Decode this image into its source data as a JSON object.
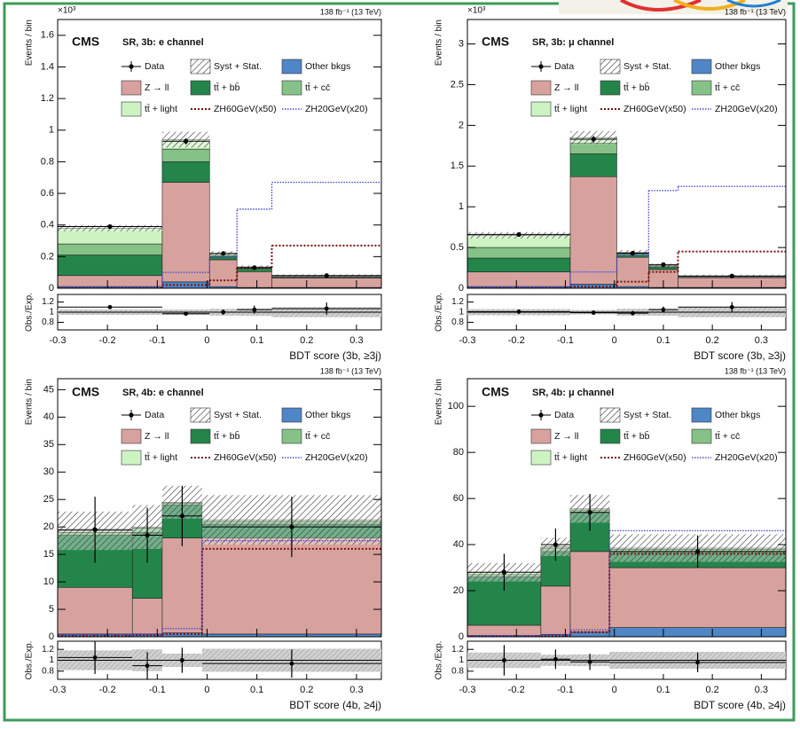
{
  "chart_data": [
    {
      "type": "stacked_histogram",
      "experiment": "CMS",
      "label": "SR, 3b: e channel",
      "lumi": "138 fb⁻¹ (13 TeV)",
      "y_multiplier": "×10³",
      "ylabel": "Events / bin",
      "xlabel": "BDT score (3b, ≥3j)",
      "bins": [
        -0.3,
        -0.09,
        0.005,
        0.06,
        0.13,
        0.35
      ],
      "xlim": [
        -0.3,
        0.35
      ],
      "xticks": [
        -0.3,
        -0.2,
        -0.1,
        0,
        0.1,
        0.2,
        0.3
      ],
      "ylim": [
        0,
        1.7
      ],
      "yticks": [
        0,
        0.2,
        0.4,
        0.6,
        0.8,
        1,
        1.2,
        1.4,
        1.6
      ],
      "series": [
        {
          "name": "Other bkgs",
          "color": "#4f86c6",
          "values": [
            0.01,
            0.04,
            0.01,
            0.005,
            0.005
          ]
        },
        {
          "name": "Z → ll",
          "color": "#d7a29e",
          "values": [
            0.07,
            0.63,
            0.17,
            0.1,
            0.06
          ]
        },
        {
          "name": "tt̄ + bb̄",
          "color": "#23854a",
          "values": [
            0.13,
            0.13,
            0.02,
            0.02,
            0.005
          ]
        },
        {
          "name": "tt̄ + cc̄",
          "color": "#86c287",
          "values": [
            0.07,
            0.08,
            0.01,
            0.005,
            0.005
          ]
        },
        {
          "name": "tt̄ + light",
          "color": "#cdf3c3",
          "values": [
            0.1,
            0.06,
            0.01,
            0.005,
            0.005
          ]
        }
      ],
      "data": {
        "name": "Data",
        "values": [
          0.39,
          0.93,
          0.22,
          0.13,
          0.08
        ],
        "errors": [
          0.01,
          0.02,
          0.01,
          0.01,
          0.01
        ]
      },
      "uncertainty": {
        "name": "Syst + Stat.",
        "values": [
          0.02,
          0.05,
          0.015,
          0.01,
          0.008
        ]
      },
      "signals": [
        {
          "name": "ZH60GeV(x50)",
          "color": "#7a1010",
          "values": [
            0,
            0.02,
            0.05,
            0.13,
            0.27
          ]
        },
        {
          "name": "ZH20GeV(x20)",
          "color": "#4a4ad0",
          "values": [
            0.01,
            0.1,
            0.2,
            0.5,
            0.67
          ]
        }
      ],
      "ratio": {
        "ylabel": "Obs./Exp.",
        "ylim": [
          0.65,
          1.35
        ],
        "yticks": [
          0.8,
          1,
          1.2
        ],
        "values": [
          1.1,
          0.97,
          1.0,
          1.05,
          1.07
        ],
        "errors": [
          0.03,
          0.02,
          0.05,
          0.08,
          0.12
        ]
      }
    },
    {
      "type": "stacked_histogram",
      "experiment": "CMS",
      "label": "SR, 3b: μ channel",
      "lumi": "138 fb⁻¹ (13 TeV)",
      "y_multiplier": "×10³",
      "ylabel": "Events / bin",
      "xlabel": "BDT score (3b, ≥3j)",
      "bins": [
        -0.3,
        -0.09,
        0.005,
        0.07,
        0.13,
        0.35
      ],
      "xlim": [
        -0.3,
        0.35
      ],
      "xticks": [
        -0.3,
        -0.2,
        -0.1,
        0,
        0.1,
        0.2,
        0.3
      ],
      "ylim": [
        0,
        3.3
      ],
      "yticks": [
        0,
        0.5,
        1,
        1.5,
        2,
        2.5,
        3
      ],
      "series": [
        {
          "name": "Other bkgs",
          "color": "#4f86c6",
          "values": [
            0.02,
            0.05,
            0.02,
            0.01,
            0.01
          ]
        },
        {
          "name": "Z → ll",
          "color": "#d7a29e",
          "values": [
            0.18,
            1.32,
            0.36,
            0.22,
            0.12
          ]
        },
        {
          "name": "tt̄ + bb̄",
          "color": "#23854a",
          "values": [
            0.17,
            0.28,
            0.04,
            0.03,
            0.01
          ]
        },
        {
          "name": "tt̄ + cc̄",
          "color": "#86c287",
          "values": [
            0.13,
            0.13,
            0.01,
            0.01,
            0.005
          ]
        },
        {
          "name": "tt̄ + light",
          "color": "#cdf3c3",
          "values": [
            0.15,
            0.07,
            0.01,
            0.01,
            0.005
          ]
        }
      ],
      "data": {
        "name": "Data",
        "values": [
          0.66,
          1.83,
          0.43,
          0.29,
          0.15
        ],
        "errors": [
          0.02,
          0.04,
          0.02,
          0.02,
          0.01
        ]
      },
      "uncertainty": {
        "name": "Syst + Stat.",
        "values": [
          0.04,
          0.08,
          0.03,
          0.02,
          0.015
        ]
      },
      "signals": [
        {
          "name": "ZH60GeV(x50)",
          "color": "#7a1010",
          "values": [
            0,
            0.02,
            0.08,
            0.2,
            0.45
          ]
        },
        {
          "name": "ZH20GeV(x20)",
          "color": "#4a4ad0",
          "values": [
            0.02,
            0.2,
            0.4,
            1.2,
            1.25
          ]
        }
      ],
      "ratio": {
        "ylabel": "Obs./Exp.",
        "ylim": [
          0.65,
          1.35
        ],
        "yticks": [
          0.8,
          1,
          1.2
        ],
        "values": [
          1.01,
          0.99,
          0.98,
          1.05,
          1.1
        ],
        "errors": [
          0.02,
          0.02,
          0.04,
          0.06,
          0.1
        ]
      }
    },
    {
      "type": "stacked_histogram",
      "experiment": "CMS",
      "label": "SR, 4b: e channel",
      "lumi": "138 fb⁻¹ (13 TeV)",
      "ylabel": "Events / bin",
      "xlabel": "BDT score (4b, ≥4j)",
      "bins": [
        -0.3,
        -0.15,
        -0.09,
        -0.01,
        0.35
      ],
      "xlim": [
        -0.3,
        0.35
      ],
      "xticks": [
        -0.3,
        -0.2,
        -0.1,
        0,
        0.1,
        0.2,
        0.3
      ],
      "ylim": [
        0,
        47
      ],
      "yticks": [
        0,
        5,
        10,
        15,
        20,
        25,
        30,
        35,
        40,
        45
      ],
      "series": [
        {
          "name": "Other bkgs",
          "color": "#4f86c6",
          "values": [
            0.5,
            0.5,
            0.7,
            0.5
          ]
        },
        {
          "name": "Z → ll",
          "color": "#d7a29e",
          "values": [
            8.5,
            6.5,
            17.3,
            17.5
          ]
        },
        {
          "name": "tt̄ + bb̄",
          "color": "#23854a",
          "values": [
            9.5,
            12,
            6,
            2.5
          ]
        },
        {
          "name": "tt̄ + cc̄",
          "color": "#86c287",
          "values": [
            0.5,
            0.8,
            0.3,
            0.5
          ]
        },
        {
          "name": "tt̄ + light",
          "color": "#cdf3c3",
          "values": [
            0.3,
            0.2,
            0.2,
            0.3
          ]
        }
      ],
      "data": {
        "name": "Data",
        "values": [
          19.5,
          18.5,
          22,
          20
        ],
        "errors": [
          6,
          5,
          5.5,
          5.5
        ]
      },
      "uncertainty": {
        "name": "Syst + Stat.",
        "values": [
          3.5,
          4,
          3,
          4.5
        ]
      },
      "signals": [
        {
          "name": "ZH60GeV(x50)",
          "color": "#7a1010",
          "values": [
            0.2,
            0.3,
            0.5,
            16
          ]
        },
        {
          "name": "ZH20GeV(x20)",
          "color": "#4a4ad0",
          "values": [
            0.3,
            0.5,
            1.5,
            17.5
          ]
        }
      ],
      "ratio": {
        "ylabel": "Obs./Exp.",
        "ylim": [
          0.65,
          1.35
        ],
        "yticks": [
          0.8,
          1,
          1.2
        ],
        "values": [
          1.05,
          0.9,
          1.0,
          0.94
        ],
        "errors": [
          0.3,
          0.25,
          0.23,
          0.26
        ]
      }
    },
    {
      "type": "stacked_histogram",
      "experiment": "CMS",
      "label": "SR, 4b: μ channel",
      "lumi": "138 fb⁻¹ (13 TeV)",
      "ylabel": "Events / bin",
      "xlabel": "BDT score (4b, ≥4j)",
      "bins": [
        -0.3,
        -0.15,
        -0.09,
        -0.01,
        0.35
      ],
      "xlim": [
        -0.3,
        0.35
      ],
      "xticks": [
        -0.3,
        -0.2,
        -0.1,
        0,
        0.1,
        0.2,
        0.3
      ],
      "ylim": [
        0,
        112
      ],
      "yticks": [
        0,
        20,
        40,
        60,
        80,
        100
      ],
      "series": [
        {
          "name": "Other bkgs",
          "color": "#4f86c6",
          "values": [
            0.5,
            1,
            2,
            4
          ]
        },
        {
          "name": "Z → ll",
          "color": "#d7a29e",
          "values": [
            4.5,
            21,
            35,
            26
          ]
        },
        {
          "name": "tt̄ + bb̄",
          "color": "#23854a",
          "values": [
            21,
            15,
            17,
            7
          ]
        },
        {
          "name": "tt̄ + cc̄",
          "color": "#86c287",
          "values": [
            1,
            1.5,
            1,
            1
          ]
        },
        {
          "name": "tt̄ + light",
          "color": "#cdf3c3",
          "values": [
            1,
            0.5,
            0.5,
            0.5
          ]
        }
      ],
      "data": {
        "name": "Data",
        "values": [
          28,
          40,
          54,
          37
        ],
        "errors": [
          8,
          7,
          8,
          7
        ]
      },
      "uncertainty": {
        "name": "Syst + Stat.",
        "values": [
          4,
          4,
          6,
          6
        ]
      },
      "signals": [
        {
          "name": "ZH60GeV(x50)",
          "color": "#7a1010",
          "values": [
            0.3,
            0.5,
            2,
            36
          ]
        },
        {
          "name": "ZH20GeV(x20)",
          "color": "#4a4ad0",
          "values": [
            0.5,
            1,
            3,
            46
          ]
        }
      ],
      "ratio": {
        "ylabel": "Obs./Exp.",
        "ylim": [
          0.65,
          1.35
        ],
        "yticks": [
          0.8,
          1,
          1.2
        ],
        "values": [
          1.0,
          1.02,
          0.97,
          0.96
        ],
        "errors": [
          0.28,
          0.18,
          0.15,
          0.18
        ]
      }
    }
  ]
}
